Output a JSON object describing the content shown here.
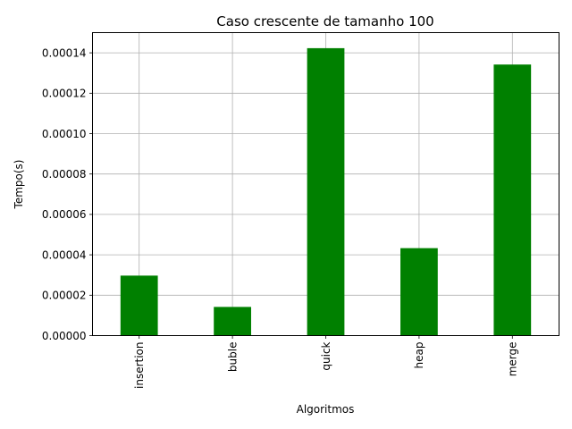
{
  "chart_data": {
    "type": "bar",
    "title": "Caso crescente de tamanho 100",
    "xlabel": "Algoritmos",
    "ylabel": "Tempo(s)",
    "categories": [
      "insertion",
      "buble",
      "quick",
      "heap",
      "merge"
    ],
    "values": [
      2.97e-05,
      1.42e-05,
      0.0001423,
      4.33e-05,
      0.0001342
    ],
    "ylim": [
      0,
      0.00015
    ],
    "yticks": [
      "0.00000",
      "0.00002",
      "0.00004",
      "0.00006",
      "0.00008",
      "0.00010",
      "0.00012",
      "0.00014"
    ],
    "ytick_values": [
      0,
      2e-05,
      4e-05,
      6e-05,
      8e-05,
      0.0001,
      0.00012,
      0.00014
    ],
    "grid": true,
    "bar_color": "#008000",
    "x_tick_rotation": "vertical"
  }
}
